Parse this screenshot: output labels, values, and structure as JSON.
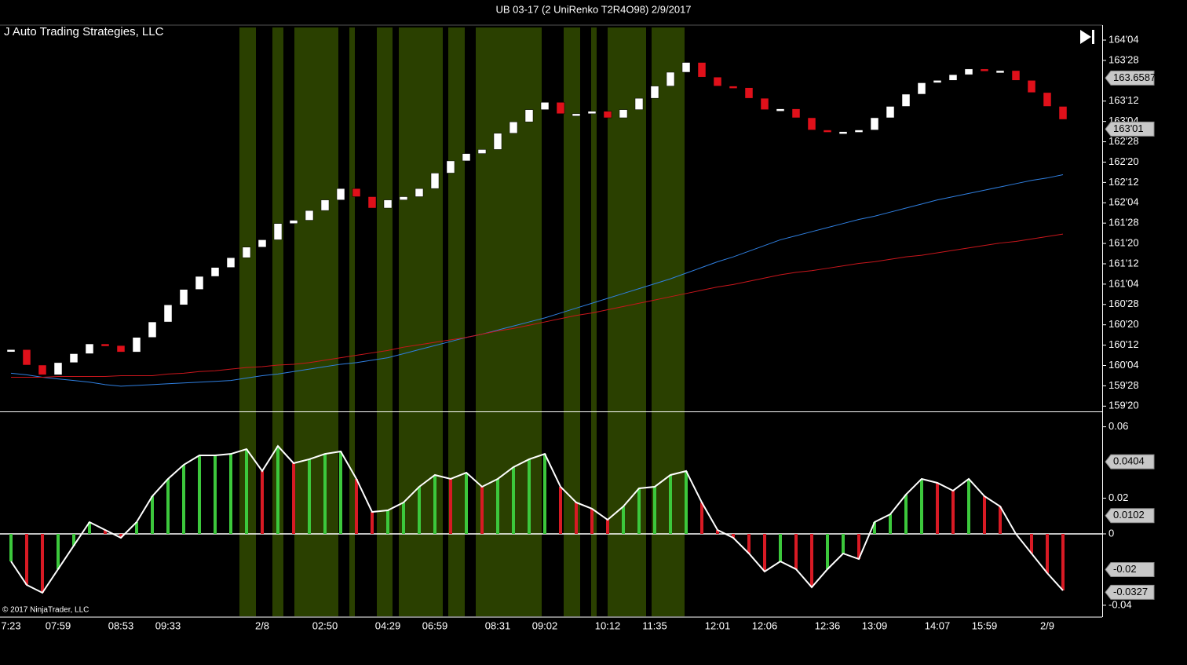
{
  "chart_data": [
    {
      "type": "renko",
      "title": "UB 03-17 (2 UniRenko T2R4O98)  2/9/2017",
      "annotation": "J Auto Trading Strategies, LLC",
      "categories": [
        "7:23",
        null,
        null,
        "07:59",
        null,
        null,
        null,
        "08:53",
        null,
        null,
        "09:33",
        null,
        null,
        null,
        null,
        null,
        "2/8",
        null,
        null,
        null,
        "02:50",
        null,
        null,
        null,
        "04:29",
        null,
        null,
        "06:59",
        null,
        null,
        null,
        "08:31",
        null,
        null,
        "09:02",
        null,
        null,
        null,
        "10:12",
        null,
        null,
        "11:35",
        null,
        null,
        null,
        "12:01",
        null,
        null,
        "12:06",
        null,
        null,
        null,
        "12:36",
        null,
        null,
        "13:09",
        null,
        null,
        null,
        "14:07",
        null,
        null,
        "15:59",
        null,
        null,
        null,
        "2/9",
        null
      ],
      "values": [
        160.32,
        160.13,
        160.01,
        160.16,
        160.27,
        160.39,
        160.37,
        160.29,
        160.47,
        160.66,
        160.87,
        161.06,
        161.22,
        161.33,
        161.45,
        161.58,
        161.67,
        161.87,
        161.91,
        162.03,
        162.16,
        162.3,
        162.2,
        162.06,
        162.16,
        162.2,
        162.3,
        162.49,
        162.64,
        162.73,
        162.78,
        162.98,
        163.12,
        163.27,
        163.36,
        163.22,
        163.22,
        163.25,
        163.17,
        163.27,
        163.41,
        163.56,
        163.73,
        163.85,
        163.67,
        163.56,
        163.54,
        163.41,
        163.27,
        163.28,
        163.17,
        163.02,
        163.0,
        163.0,
        163.02,
        163.17,
        163.31,
        163.46,
        163.6,
        163.63,
        163.7,
        163.77,
        163.75,
        163.75,
        163.63,
        163.48,
        163.31,
        163.15
      ],
      "up_color": "#ffffff",
      "down_color": "#e0101a",
      "overlays": [
        {
          "color": "#2f7fe0",
          "values": [
            160.03,
            160.01,
            159.98,
            159.96,
            159.94,
            159.92,
            159.89,
            159.87,
            159.88,
            159.89,
            159.9,
            159.91,
            159.92,
            159.93,
            159.94,
            159.97,
            160.0,
            160.02,
            160.05,
            160.08,
            160.11,
            160.14,
            160.16,
            160.19,
            160.22,
            160.27,
            160.32,
            160.37,
            160.42,
            160.47,
            160.51,
            160.56,
            160.61,
            160.66,
            160.71,
            160.77,
            160.83,
            160.89,
            160.95,
            161.01,
            161.07,
            161.13,
            161.19,
            161.26,
            161.33,
            161.4,
            161.46,
            161.53,
            161.6,
            161.67,
            161.72,
            161.77,
            161.82,
            161.87,
            161.92,
            161.96,
            162.01,
            162.06,
            162.11,
            162.16,
            162.2,
            162.24,
            162.28,
            162.32,
            162.36,
            162.4,
            162.43,
            162.47
          ]
        },
        {
          "color": "#c8161c",
          "values": [
            159.98,
            159.98,
            159.98,
            159.99,
            159.99,
            159.99,
            159.99,
            160.0,
            160.0,
            160.0,
            160.02,
            160.03,
            160.05,
            160.06,
            160.08,
            160.1,
            160.11,
            160.13,
            160.14,
            160.16,
            160.19,
            160.22,
            160.25,
            160.28,
            160.31,
            160.35,
            160.38,
            160.41,
            160.44,
            160.47,
            160.51,
            160.55,
            160.58,
            160.62,
            160.66,
            160.7,
            160.74,
            160.77,
            160.81,
            160.85,
            160.89,
            160.93,
            160.97,
            161.01,
            161.05,
            161.09,
            161.12,
            161.16,
            161.2,
            161.24,
            161.27,
            161.29,
            161.32,
            161.35,
            161.38,
            161.4,
            161.43,
            161.46,
            161.48,
            161.51,
            161.54,
            161.57,
            161.6,
            161.63,
            161.65,
            161.68,
            161.71,
            161.74
          ]
        }
      ],
      "ylim": [
        159.57,
        164.28
      ],
      "yticks": [
        {
          "value": 164.125,
          "label": "164'04"
        },
        {
          "value": 163.875,
          "label": "163'28"
        },
        {
          "value": 163.375,
          "label": "163'12"
        },
        {
          "value": 163.125,
          "label": "163'04"
        },
        {
          "value": 162.875,
          "label": "162'28"
        },
        {
          "value": 162.625,
          "label": "162'20"
        },
        {
          "value": 162.375,
          "label": "162'12"
        },
        {
          "value": 162.125,
          "label": "162'04"
        },
        {
          "value": 161.875,
          "label": "161'28"
        },
        {
          "value": 161.625,
          "label": "161'20"
        },
        {
          "value": 161.375,
          "label": "161'12"
        },
        {
          "value": 161.125,
          "label": "161'04"
        },
        {
          "value": 160.875,
          "label": "160'28"
        },
        {
          "value": 160.625,
          "label": "160'20"
        },
        {
          "value": 160.375,
          "label": "160'12"
        },
        {
          "value": 160.125,
          "label": "160'04"
        },
        {
          "value": 159.875,
          "label": "159'28"
        },
        {
          "value": 159.625,
          "label": "159'20"
        }
      ],
      "markers": [
        163.65879,
        {
          "value": 163.03125,
          "label": "163'01"
        }
      ]
    },
    {
      "type": "oscillator",
      "annotation": "© 2017 NinjaTrader, LLC",
      "values": [
        -0.0154,
        -0.0286,
        -0.033,
        -0.0198,
        -0.0066,
        0.0066,
        0.0022,
        -0.0022,
        0.0066,
        0.0211,
        0.0308,
        0.0387,
        0.044,
        0.044,
        0.0448,
        0.0475,
        0.0352,
        0.0492,
        0.0396,
        0.0418,
        0.0448,
        0.0462,
        0.0308,
        0.0123,
        0.0132,
        0.0176,
        0.0264,
        0.033,
        0.0308,
        0.0343,
        0.0264,
        0.0308,
        0.0374,
        0.0418,
        0.0448,
        0.0264,
        0.0176,
        0.0141,
        0.0079,
        0.0154,
        0.0255,
        0.0264,
        0.033,
        0.0352,
        0.0176,
        0.0022,
        -0.0022,
        -0.011,
        -0.0211,
        -0.0154,
        -0.0198,
        -0.0299,
        -0.0198,
        -0.011,
        -0.0141,
        0.0066,
        0.011,
        0.022,
        0.0308,
        0.0286,
        0.0242,
        0.0308,
        0.0211,
        0.0154,
        0,
        -0.011,
        -0.022,
        -0.0317
      ],
      "up_color": "#3cc83c",
      "down_color": "#d81a24",
      "line_color": "#ffffff",
      "ylim": [
        -0.0462,
        0.0673
      ],
      "yticks": [
        0.06,
        0.02,
        0,
        -0.04
      ],
      "markers": [
        0.0404,
        0.0102,
        -0.02,
        -0.0327
      ]
    }
  ]
}
